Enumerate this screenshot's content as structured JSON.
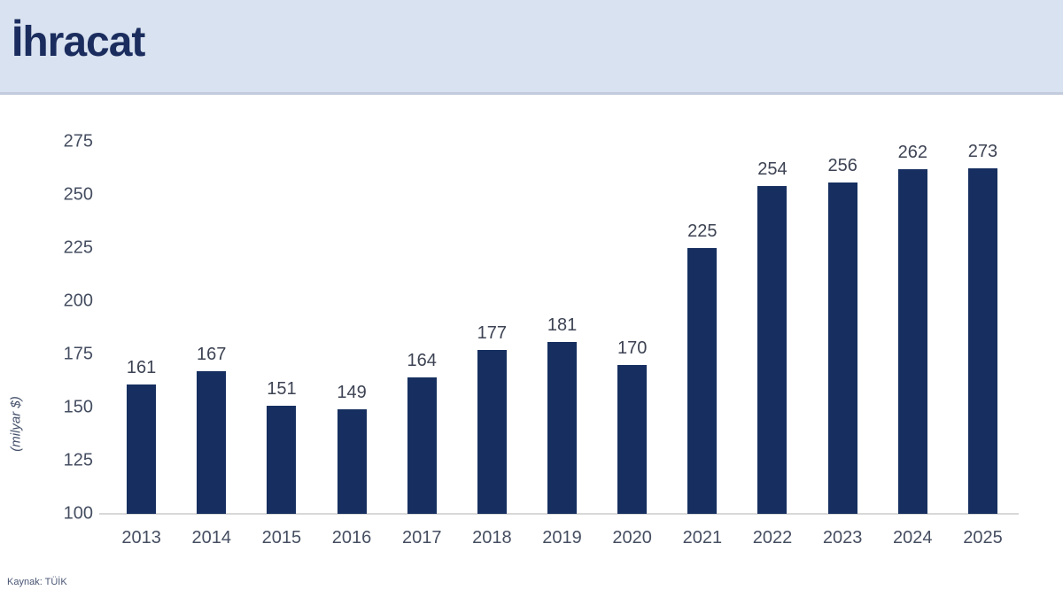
{
  "header": {
    "title": "İhracat"
  },
  "source": {
    "label": "Kaynak: TÜİK"
  },
  "colors": {
    "header_bg": "#d9e2f0",
    "header_border": "#c3ccdd",
    "title_text": "#1b2d5e",
    "bar_fill": "#162f60",
    "tick_text": "#454e61",
    "value_text": "#3d4353",
    "axis_line": "#d8d8d8"
  },
  "chart_data": {
    "type": "bar",
    "title": "İhracat",
    "categories": [
      "2013",
      "2014",
      "2015",
      "2016",
      "2017",
      "2018",
      "2019",
      "2020",
      "2021",
      "2022",
      "2023",
      "2024",
      "2025"
    ],
    "values": [
      161,
      167,
      151,
      149,
      164,
      177,
      181,
      170,
      225,
      254,
      256,
      262,
      273
    ],
    "xlabel": "",
    "ylabel": "(milyar $)",
    "ylim": [
      100,
      275
    ],
    "ytick_step": 25,
    "yticks": [
      100,
      125,
      150,
      175,
      200,
      225,
      250,
      275
    ],
    "grid": false,
    "legend": false,
    "source": "Kaynak: TÜİK"
  }
}
